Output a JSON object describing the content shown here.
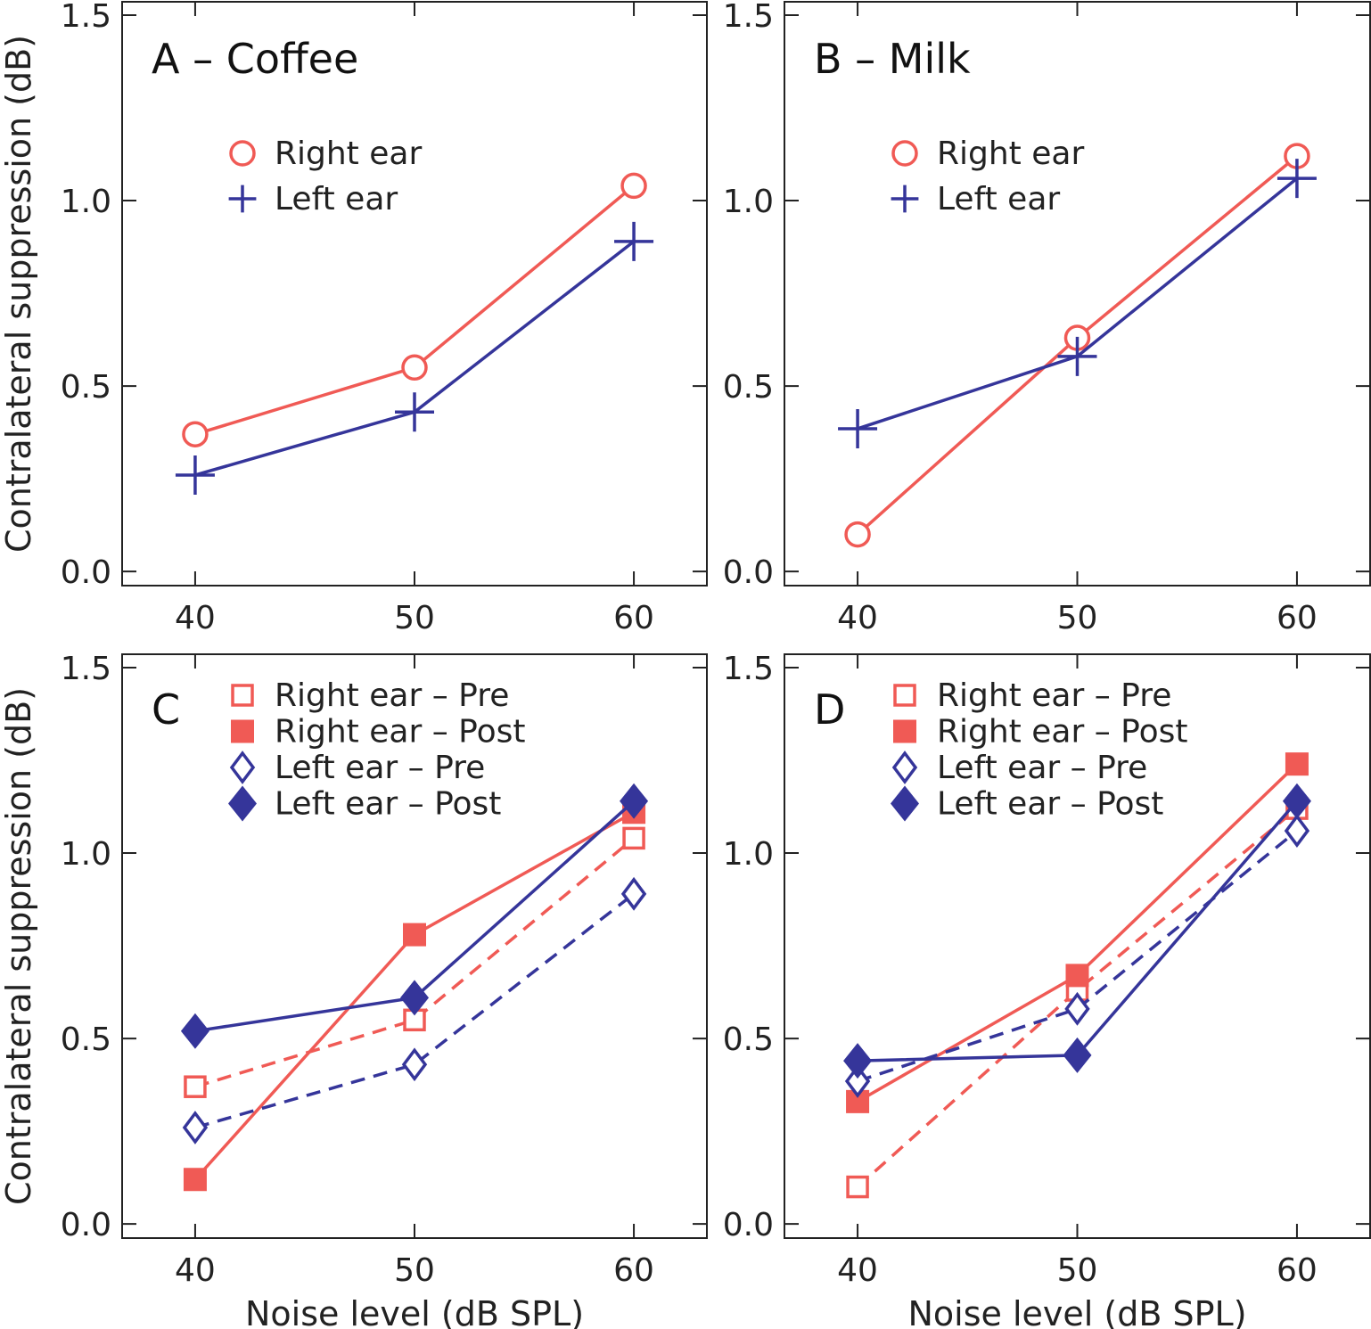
{
  "colors": {
    "right": "#F05A55",
    "left": "#35359A"
  },
  "chart_data": [
    {
      "panel": "A",
      "title": "A – Coffee",
      "type": "line",
      "x": [
        40,
        50,
        60
      ],
      "xlim": [
        36.67,
        63.33
      ],
      "ylim": [
        -0.038,
        1.536
      ],
      "xticks": [
        "40",
        "50",
        "60"
      ],
      "yticks": [
        "0.0",
        "0.5",
        "1.0",
        "1.5"
      ],
      "ylabel": "Contralateral suppression (dB)",
      "xlabel": "",
      "series": [
        {
          "name": "Right ear",
          "color": "right",
          "marker": "circle-open",
          "dash": false,
          "values": [
            0.37,
            0.55,
            1.04
          ]
        },
        {
          "name": "Left ear",
          "color": "left",
          "marker": "plus",
          "dash": false,
          "values": [
            0.26,
            0.43,
            0.89
          ]
        }
      ]
    },
    {
      "panel": "B",
      "title": "B – Milk",
      "type": "line",
      "x": [
        40,
        50,
        60
      ],
      "xlim": [
        36.67,
        63.33
      ],
      "ylim": [
        -0.038,
        1.536
      ],
      "xticks": [
        "40",
        "50",
        "60"
      ],
      "yticks": [
        "0.0",
        "0.5",
        "1.0",
        "1.5"
      ],
      "ylabel": "",
      "xlabel": "",
      "series": [
        {
          "name": "Right ear",
          "color": "right",
          "marker": "circle-open",
          "dash": false,
          "values": [
            0.1,
            0.63,
            1.12
          ]
        },
        {
          "name": "Left ear",
          "color": "left",
          "marker": "plus",
          "dash": false,
          "values": [
            0.385,
            0.58,
            1.06
          ]
        }
      ]
    },
    {
      "panel": "C",
      "title": "C",
      "type": "line",
      "x": [
        40,
        50,
        60
      ],
      "xlim": [
        36.67,
        63.33
      ],
      "ylim": [
        -0.038,
        1.536
      ],
      "xticks": [
        "40",
        "50",
        "60"
      ],
      "yticks": [
        "0.0",
        "0.5",
        "1.0",
        "1.5"
      ],
      "ylabel": "Contralateral suppression (dB)",
      "xlabel": "Noise level (dB SPL)",
      "series": [
        {
          "name": "Right ear – Pre",
          "color": "right",
          "marker": "square-open",
          "dash": true,
          "values": [
            0.37,
            0.55,
            1.04
          ]
        },
        {
          "name": "Right ear – Post",
          "color": "right",
          "marker": "square-filled",
          "dash": false,
          "values": [
            0.12,
            0.78,
            1.11
          ]
        },
        {
          "name": "Left ear – Pre",
          "color": "left",
          "marker": "diamond-open",
          "dash": true,
          "values": [
            0.26,
            0.43,
            0.89
          ]
        },
        {
          "name": "Left ear – Post",
          "color": "left",
          "marker": "diamond-filled",
          "dash": false,
          "values": [
            0.52,
            0.61,
            1.14
          ]
        }
      ]
    },
    {
      "panel": "D",
      "title": "D",
      "type": "line",
      "x": [
        40,
        50,
        60
      ],
      "xlim": [
        36.67,
        63.33
      ],
      "ylim": [
        -0.038,
        1.536
      ],
      "xticks": [
        "40",
        "50",
        "60"
      ],
      "yticks": [
        "0.0",
        "0.5",
        "1.0",
        "1.5"
      ],
      "ylabel": "",
      "xlabel": "Noise level (dB SPL)",
      "series": [
        {
          "name": "Right ear – Pre",
          "color": "right",
          "marker": "square-open",
          "dash": true,
          "values": [
            0.1,
            0.63,
            1.12
          ]
        },
        {
          "name": "Right ear – Post",
          "color": "right",
          "marker": "square-filled",
          "dash": false,
          "values": [
            0.33,
            0.67,
            1.24
          ]
        },
        {
          "name": "Left ear – Pre",
          "color": "left",
          "marker": "diamond-open",
          "dash": true,
          "values": [
            0.385,
            0.58,
            1.06
          ]
        },
        {
          "name": "Left ear – Post",
          "color": "left",
          "marker": "diamond-filled",
          "dash": false,
          "values": [
            0.44,
            0.455,
            1.14
          ]
        }
      ]
    }
  ]
}
